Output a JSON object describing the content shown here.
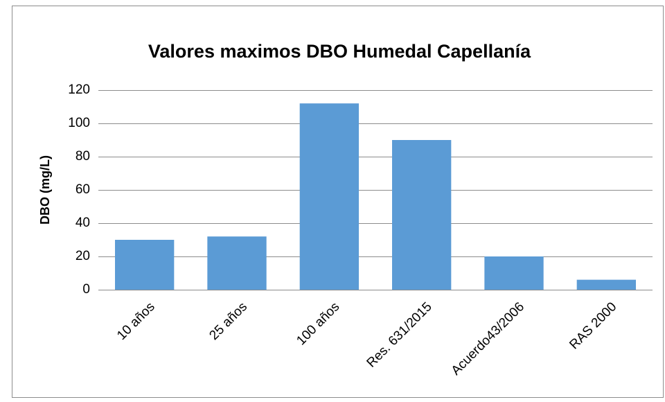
{
  "chart_data": {
    "type": "bar",
    "title": "Valores maximos DBO Humedal Capellanía",
    "y_label": "DBO (mg/L)",
    "categories": [
      "10 años",
      "25 años",
      "100 años",
      "Res. 631/2015",
      "Acuerdo43/2006",
      "RAS 2000"
    ],
    "values": [
      30,
      32,
      112,
      90,
      20,
      6
    ],
    "color": "#5b9bd5",
    "ylim": [
      0,
      120
    ],
    "yticks": [
      0,
      20,
      40,
      60,
      80,
      100,
      120
    ],
    "grid": true
  }
}
